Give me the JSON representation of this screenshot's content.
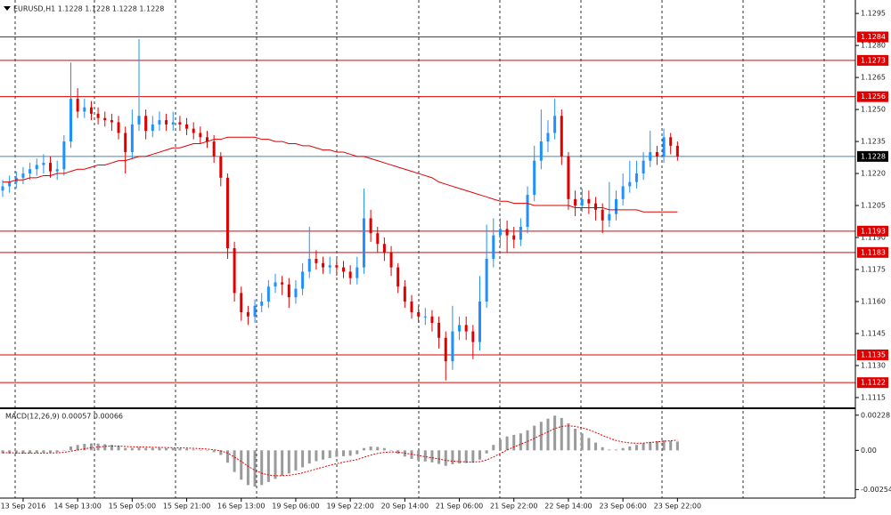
{
  "chart_data": [
    {
      "type": "candlestick",
      "title": "EURUSD,H1  1.1228 1.1228 1.1228 1.1228",
      "categories": [
        null,
        null,
        null,
        "13 Sep 2016",
        null,
        null,
        null,
        null,
        null,
        null,
        null,
        "14 Sep 13:00",
        null,
        null,
        null,
        null,
        null,
        null,
        null,
        "15 Sep 05:00",
        null,
        null,
        null,
        null,
        null,
        null,
        null,
        "15 Sep 21:00",
        null,
        null,
        null,
        null,
        null,
        null,
        null,
        "16 Sep 13:00",
        null,
        null,
        null,
        null,
        null,
        null,
        null,
        "19 Sep 06:00",
        null,
        null,
        null,
        null,
        null,
        null,
        null,
        "19 Sep 22:00",
        null,
        null,
        null,
        null,
        null,
        null,
        null,
        "20 Sep 14:00",
        null,
        null,
        null,
        null,
        null,
        null,
        null,
        "21 Sep 06:00",
        null,
        null,
        null,
        null,
        null,
        null,
        null,
        "21 Sep 22:00",
        null,
        null,
        null,
        null,
        null,
        null,
        null,
        "22 Sep 14:00",
        null,
        null,
        null,
        null,
        null,
        null,
        null,
        "23 Sep 06:00",
        null,
        null,
        null,
        null,
        null,
        null,
        null,
        "23 Sep 22:00"
      ],
      "open": [
        1.1212,
        1.1214,
        1.1216,
        1.1218,
        1.122,
        1.1222,
        1.1224,
        1.1225,
        1.1221,
        1.1222,
        1.1235,
        1.1255,
        1.1249,
        1.1251,
        1.1248,
        1.1246,
        1.1245,
        1.1244,
        1.1239,
        1.123,
        1.1243,
        1.1247,
        1.124,
        1.1243,
        1.1245,
        1.1243,
        1.1244,
        1.1243,
        1.1241,
        1.1239,
        1.1237,
        1.1235,
        1.1228,
        1.1218,
        1.1185,
        1.1164,
        1.1155,
        1.1153,
        1.1158,
        1.116,
        1.1167,
        1.1169,
        1.1168,
        1.1162,
        1.1166,
        1.1174,
        1.118,
        1.1178,
        1.1176,
        1.1177,
        1.1176,
        1.1174,
        1.1171,
        1.1176,
        1.1199,
        1.1192,
        1.1187,
        1.1183,
        1.1176,
        1.1167,
        1.116,
        1.1155,
        1.1153,
        1.1153,
        1.115,
        1.1143,
        1.1132,
        1.1146,
        1.1149,
        1.1146,
        1.1141,
        1.116,
        1.118,
        1.1191,
        1.1194,
        1.1191,
        1.1189,
        1.1195,
        1.121,
        1.1226,
        1.1235,
        1.1239,
        1.1247,
        1.1228,
        1.1208,
        1.1205,
        1.1208,
        1.1206,
        1.1203,
        1.1198,
        1.1201,
        1.1208,
        1.1214,
        1.1216,
        1.122,
        1.1226,
        1.123,
        1.1228,
        1.1237,
        1.1233
      ],
      "high": [
        1.1217,
        1.1219,
        1.1221,
        1.1223,
        1.1225,
        1.1227,
        1.1229,
        1.1228,
        1.1226,
        1.1238,
        1.1272,
        1.126,
        1.1255,
        1.1254,
        1.1251,
        1.1249,
        1.1248,
        1.1247,
        1.1242,
        1.125,
        1.1283,
        1.125,
        1.1247,
        1.1249,
        1.1248,
        1.1249,
        1.1247,
        1.1246,
        1.1244,
        1.1242,
        1.124,
        1.1238,
        1.123,
        1.122,
        1.1188,
        1.1167,
        1.1158,
        1.1161,
        1.1164,
        1.117,
        1.1173,
        1.1172,
        1.1171,
        1.117,
        1.1178,
        1.1195,
        1.1184,
        1.1181,
        1.1181,
        1.118,
        1.1179,
        1.1177,
        1.1181,
        1.1213,
        1.1203,
        1.1195,
        1.119,
        1.1186,
        1.1178,
        1.117,
        1.1163,
        1.1158,
        1.1157,
        1.1156,
        1.1153,
        1.1146,
        1.1158,
        1.1153,
        1.1153,
        1.1149,
        1.1172,
        1.1196,
        1.1199,
        1.1199,
        1.1198,
        1.1195,
        1.1199,
        1.1214,
        1.1233,
        1.125,
        1.1245,
        1.1255,
        1.125,
        1.123,
        1.1212,
        1.1213,
        1.1212,
        1.1209,
        1.1206,
        1.1216,
        1.1212,
        1.122,
        1.1226,
        1.1226,
        1.123,
        1.124,
        1.1233,
        1.1241,
        1.1239,
        1.1235
      ],
      "low": [
        1.1209,
        1.1211,
        1.1213,
        1.1215,
        1.1217,
        1.1219,
        1.122,
        1.1218,
        1.1217,
        1.1219,
        1.1232,
        1.1246,
        1.1246,
        1.1245,
        1.1243,
        1.1242,
        1.124,
        1.1236,
        1.122,
        1.1227,
        1.124,
        1.1236,
        1.1237,
        1.124,
        1.124,
        1.124,
        1.124,
        1.1238,
        1.1236,
        1.1234,
        1.1232,
        1.1225,
        1.1214,
        1.118,
        1.116,
        1.1151,
        1.1149,
        1.115,
        1.1155,
        1.1157,
        1.1164,
        1.1163,
        1.1157,
        1.1159,
        1.1163,
        1.1171,
        1.1175,
        1.1173,
        1.1173,
        1.1172,
        1.1171,
        1.1168,
        1.1168,
        1.1173,
        1.1188,
        1.1183,
        1.1179,
        1.1172,
        1.1164,
        1.1157,
        1.1152,
        1.115,
        1.1149,
        1.1146,
        1.1138,
        1.1123,
        1.1128,
        1.1142,
        1.1142,
        1.1133,
        1.1137,
        1.1157,
        1.1176,
        1.1186,
        1.1183,
        1.1185,
        1.1186,
        1.1192,
        1.1207,
        1.1222,
        1.123,
        1.1236,
        1.1224,
        1.1203,
        1.12,
        1.1202,
        1.1201,
        1.1198,
        1.1192,
        1.1195,
        1.1198,
        1.1205,
        1.1211,
        1.1213,
        1.1217,
        1.1223,
        1.1224,
        1.1225,
        1.1229,
        1.1226
      ],
      "close": [
        1.1214,
        1.1216,
        1.1218,
        1.122,
        1.1222,
        1.1224,
        1.1225,
        1.1221,
        1.1222,
        1.1235,
        1.1255,
        1.1249,
        1.1251,
        1.1248,
        1.1246,
        1.1245,
        1.1244,
        1.1239,
        1.123,
        1.1243,
        1.1247,
        1.124,
        1.1243,
        1.1245,
        1.1243,
        1.1244,
        1.1243,
        1.1241,
        1.1239,
        1.1237,
        1.1235,
        1.1228,
        1.1218,
        1.1185,
        1.1164,
        1.1155,
        1.1153,
        1.1158,
        1.116,
        1.1167,
        1.1169,
        1.1168,
        1.1162,
        1.1166,
        1.1174,
        1.118,
        1.1178,
        1.1176,
        1.1177,
        1.1176,
        1.1174,
        1.1171,
        1.1176,
        1.1199,
        1.1192,
        1.1187,
        1.1183,
        1.1176,
        1.1167,
        1.116,
        1.1155,
        1.1153,
        1.1153,
        1.115,
        1.1143,
        1.1132,
        1.1146,
        1.1149,
        1.1146,
        1.1141,
        1.116,
        1.118,
        1.1191,
        1.1194,
        1.1191,
        1.1189,
        1.1195,
        1.121,
        1.1226,
        1.1235,
        1.1239,
        1.1247,
        1.1228,
        1.1208,
        1.1205,
        1.1208,
        1.1206,
        1.1203,
        1.1198,
        1.1201,
        1.1208,
        1.1214,
        1.1216,
        1.122,
        1.1226,
        1.123,
        1.1228,
        1.1237,
        1.1233,
        1.1228
      ],
      "up_color": "#1e90ff",
      "down_color": "#e00000",
      "moving_average": {
        "color": "#e00000",
        "values": [
          1.1216,
          1.1216,
          1.1217,
          1.1217,
          1.1218,
          1.1218,
          1.1219,
          1.1219,
          1.122,
          1.122,
          1.1221,
          1.1222,
          1.1222,
          1.1223,
          1.1224,
          1.1224,
          1.1225,
          1.1226,
          1.1226,
          1.1227,
          1.1228,
          1.1228,
          1.1229,
          1.123,
          1.1231,
          1.1232,
          1.1232,
          1.1233,
          1.1234,
          1.1234,
          1.1235,
          1.1236,
          1.1236,
          1.1237,
          1.1237,
          1.1237,
          1.1237,
          1.1237,
          1.1236,
          1.1236,
          1.1235,
          1.1235,
          1.1234,
          1.1234,
          1.1233,
          1.1233,
          1.1232,
          1.1231,
          1.1231,
          1.123,
          1.123,
          1.1229,
          1.1228,
          1.1228,
          1.1227,
          1.1226,
          1.1225,
          1.1224,
          1.1223,
          1.1222,
          1.1221,
          1.122,
          1.1219,
          1.1218,
          1.1216,
          1.1215,
          1.1214,
          1.1213,
          1.1212,
          1.1211,
          1.121,
          1.1209,
          1.1208,
          1.1207,
          1.1207,
          1.1206,
          1.1206,
          1.1206,
          1.1205,
          1.1205,
          1.1205,
          1.1205,
          1.1205,
          1.1205,
          1.1204,
          1.1204,
          1.1204,
          1.1204,
          1.1204,
          1.1203,
          1.1203,
          1.1203,
          1.1203,
          1.1203,
          1.1202,
          1.1202,
          1.1202,
          1.1202,
          1.1202,
          1.1202
        ]
      },
      "levels": {
        "color": "#e00000",
        "values": [
          1.1284,
          1.1273,
          1.1256,
          1.1193,
          1.1183,
          1.1135,
          1.1122
        ]
      },
      "last_price": {
        "color": "#4682b4",
        "value": 1.1228
      },
      "ylim": [
        1.11104,
        1.13013
      ],
      "yticks": [
        1.1295,
        {
          "value": 1.128,
          "label": "1.1280"
        },
        1.1265,
        {
          "value": 1.125,
          "label": "1.1250"
        },
        1.1235,
        {
          "value": 1.122,
          "label": "1.1220"
        },
        1.1205,
        {
          "value": 1.119,
          "label": "1.1190"
        },
        1.1175,
        {
          "value": 1.116,
          "label": "1.1160"
        },
        1.1145,
        {
          "value": 1.113,
          "label": "1.1130"
        },
        1.1115
      ]
    },
    {
      "type": "macd",
      "title": "MACD(12,26,9) 0.00057 0.00066",
      "histogram": {
        "color": "#9a9a9a",
        "values": [
          -0.0002,
          -0.0002,
          -0.00022,
          -0.00022,
          -0.0002,
          -0.00018,
          -0.00015,
          -0.00015,
          -0.00012,
          -2e-05,
          0.00025,
          0.00035,
          0.00042,
          0.00045,
          0.00044,
          0.0004,
          0.00035,
          0.00028,
          0.00015,
          0.00015,
          0.00018,
          0.00015,
          0.00015,
          0.00016,
          0.00014,
          0.00014,
          0.00012,
          0.0001,
          6e-05,
          2e-05,
          -2e-05,
          -0.00012,
          -0.0003,
          -0.0008,
          -0.0014,
          -0.0019,
          -0.00225,
          -0.00235,
          -0.00225,
          -0.00205,
          -0.00185,
          -0.00165,
          -0.0015,
          -0.0013,
          -0.0011,
          -0.00085,
          -0.0007,
          -0.0006,
          -0.0005,
          -0.00042,
          -0.00038,
          -0.00035,
          -0.00025,
          0.00015,
          0.00025,
          0.00022,
          0.00015,
          0,
          -0.00022,
          -0.0004,
          -0.00055,
          -0.00065,
          -0.00072,
          -0.00078,
          -0.00088,
          -0.001,
          -0.0009,
          -0.00085,
          -0.00082,
          -0.0008,
          -0.0006,
          -0.0002,
          0.00035,
          0.0007,
          0.0009,
          0.001,
          0.0011,
          0.0013,
          0.0016,
          0.00185,
          0.00205,
          0.00225,
          0.0021,
          0.00175,
          0.0014,
          0.0011,
          0.0008,
          0.0005,
          0.0002,
          5e-05,
          5e-05,
          0.00015,
          0.00025,
          0.00035,
          0.00045,
          0.00055,
          0.0006,
          0.00065,
          0.00062,
          0.00057
        ]
      },
      "signal": {
        "color": "#e00000",
        "values": [
          -0.00015,
          -0.00016,
          -0.00017,
          -0.00018,
          -0.00018,
          -0.00018,
          -0.00018,
          -0.00017,
          -0.00016,
          -0.00013,
          -6e-05,
          2e-05,
          0.0001,
          0.00017,
          0.00022,
          0.00026,
          0.00028,
          0.00028,
          0.00025,
          0.00023,
          0.00022,
          0.00021,
          0.0002,
          0.00019,
          0.00018,
          0.00017,
          0.00016,
          0.00015,
          0.00013,
          0.00011,
          8e-05,
          4e-05,
          -3e-05,
          -0.00018,
          -0.00043,
          -0.00072,
          -0.00103,
          -0.00129,
          -0.00148,
          -0.0016,
          -0.00165,
          -0.00165,
          -0.00162,
          -0.00155,
          -0.00146,
          -0.00134,
          -0.00121,
          -0.00109,
          -0.00097,
          -0.00086,
          -0.00077,
          -0.00068,
          -0.0006,
          -0.00045,
          -0.00031,
          -0.0002,
          -0.00013,
          -0.0001,
          -0.00012,
          -0.00018,
          -0.00025,
          -0.00033,
          -0.00041,
          -0.00048,
          -0.00056,
          -0.00065,
          -0.0007,
          -0.00073,
          -0.00075,
          -0.00076,
          -0.00073,
          -0.00062,
          -0.00043,
          -0.0002,
          2e-05,
          0.00022,
          0.0004,
          0.00058,
          0.00078,
          0.001,
          0.0012,
          0.00141,
          0.00155,
          0.00159,
          0.00155,
          0.00146,
          0.00133,
          0.00116,
          0.00097,
          0.00079,
          0.00064,
          0.00054,
          0.00048,
          0.00046,
          0.00047,
          0.00051,
          0.00055,
          0.00059,
          0.00062,
          0.00066
        ]
      },
      "ylim": [
        -0.00298,
        0.00267
      ],
      "yticks": [
        0.00228,
        {
          "value": 0,
          "label": "0.00"
        },
        -0.00254
      ]
    }
  ]
}
